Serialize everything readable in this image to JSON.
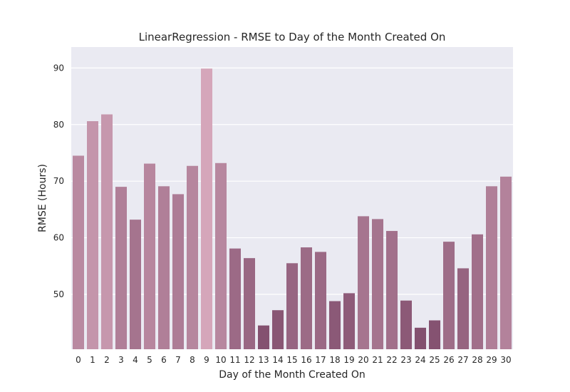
{
  "chart_data": {
    "type": "bar",
    "title": "LinearRegression - RMSE to Day of the Month Created On",
    "xlabel": "Day of the Month Created On",
    "ylabel": "RMSE (Hours)",
    "categories": [
      "0",
      "1",
      "2",
      "3",
      "4",
      "5",
      "6",
      "7",
      "8",
      "9",
      "10",
      "11",
      "12",
      "13",
      "14",
      "15",
      "16",
      "17",
      "18",
      "19",
      "20",
      "21",
      "22",
      "23",
      "24",
      "25",
      "26",
      "27",
      "28",
      "29",
      "30"
    ],
    "values": [
      74.5,
      80.6,
      81.8,
      69.0,
      63.2,
      73.1,
      69.1,
      67.7,
      72.7,
      89.9,
      73.2,
      58.1,
      56.4,
      44.5,
      47.2,
      55.5,
      58.3,
      57.5,
      48.8,
      50.2,
      63.8,
      63.3,
      61.2,
      48.9,
      44.1,
      45.4,
      59.3,
      54.6,
      60.6,
      69.1,
      70.8
    ],
    "ylim": [
      40.3,
      93.7
    ],
    "yticks": [
      50,
      60,
      70,
      80,
      90
    ],
    "grid": true,
    "legend": "none",
    "colors": {
      "plot_background": "#EAEAF2",
      "gridline": "#FFFFFF",
      "bar_high": "#D5A6BA",
      "bar_low": "#83506F",
      "text": "#262626"
    }
  }
}
